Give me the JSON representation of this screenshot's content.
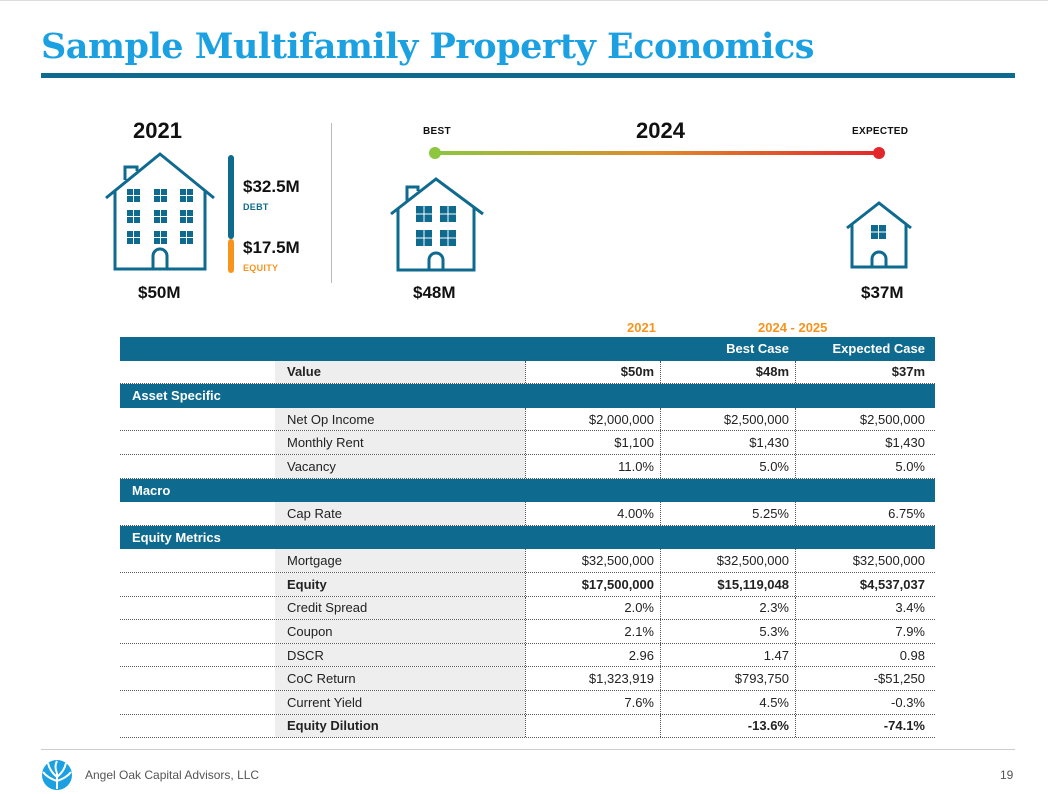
{
  "title": "Sample Multifamily Property Economics",
  "left_panel": {
    "year": "2021",
    "value": "$50M",
    "debt_amount": "$32.5M",
    "debt_label": "DEBT",
    "equity_amount": "$17.5M",
    "equity_label": "EQUITY"
  },
  "right_panel": {
    "year": "2024",
    "best_label": "BEST",
    "expected_label": "EXPECTED",
    "best_value": "$48M",
    "expected_value": "$37M"
  },
  "column_groups": {
    "g2021": "2021",
    "g2024": "2024 - 2025"
  },
  "table": {
    "header": {
      "best": "Best Case",
      "expected": "Expected Case"
    },
    "value_row": {
      "label": "Value",
      "v2021": "$50m",
      "best": "$48m",
      "expected": "$37m"
    },
    "asset_specific": {
      "title": "Asset Specific",
      "rows": [
        {
          "label": "Net Op Income",
          "v2021": "$2,000,000",
          "best": "$2,500,000",
          "expected": "$2,500,000"
        },
        {
          "label": "Monthly Rent",
          "v2021": "$1,100",
          "best": "$1,430",
          "expected": "$1,430"
        },
        {
          "label": "Vacancy",
          "v2021": "11.0%",
          "best": "5.0%",
          "expected": "5.0%"
        }
      ]
    },
    "macro": {
      "title": "Macro",
      "rows": [
        {
          "label": "Cap Rate",
          "v2021": "4.00%",
          "best": "5.25%",
          "expected": "6.75%"
        }
      ]
    },
    "equity_metrics": {
      "title": "Equity Metrics",
      "rows": [
        {
          "label": "Mortgage",
          "v2021": "$32,500,000",
          "best": "$32,500,000",
          "expected": "$32,500,000"
        },
        {
          "label": "Equity",
          "v2021": "$17,500,000",
          "best": "$15,119,048",
          "expected": "$4,537,037"
        },
        {
          "label": "Credit Spread",
          "v2021": "2.0%",
          "best": "2.3%",
          "expected": "3.4%"
        },
        {
          "label": "Coupon",
          "v2021": "2.1%",
          "best": "5.3%",
          "expected": "7.9%"
        },
        {
          "label": "DSCR",
          "v2021": "2.96",
          "best": "1.47",
          "expected": "0.98"
        },
        {
          "label": "CoC Return",
          "v2021": "$1,323,919",
          "best": "$793,750",
          "expected": "-$51,250"
        },
        {
          "label": "Current Yield",
          "v2021": "7.6%",
          "best": "4.5%",
          "expected": "-0.3%"
        },
        {
          "label": "Equity Dilution",
          "v2021": "",
          "best": "-13.6%",
          "expected": "-74.1%"
        }
      ]
    }
  },
  "footer": {
    "company": "Angel Oak Capital Advisors, LLC",
    "page": "19"
  },
  "colors": {
    "title": "#1ba0e2",
    "navy": "#0f6a8f",
    "orange": "#f7941d",
    "best_green": "#8dc63f",
    "expected_red": "#e3262b"
  },
  "icons": [
    "house-large-icon",
    "house-medium-icon",
    "house-small-icon",
    "angel-oak-logo-icon"
  ]
}
